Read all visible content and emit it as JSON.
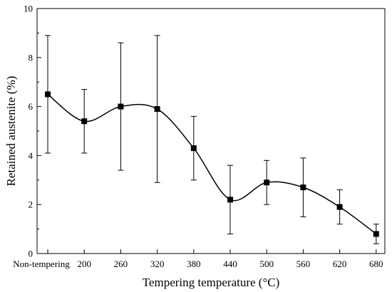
{
  "chart_data": {
    "type": "line",
    "xlabel": "Tempering temperature (°C)",
    "ylabel": "Retained austenite (%)",
    "categories": [
      "Non-tempering",
      "200",
      "260",
      "320",
      "380",
      "440",
      "500",
      "560",
      "620",
      "680"
    ],
    "ylim": [
      0,
      10
    ],
    "yticks": [
      "0",
      "2",
      "4",
      "6",
      "8",
      "10"
    ],
    "series": [
      {
        "values": [
          6.5,
          5.4,
          6.0,
          5.9,
          4.3,
          2.2,
          2.9,
          2.7,
          1.9,
          0.8
        ],
        "error_upper": [
          8.9,
          6.7,
          8.6,
          8.9,
          5.6,
          3.6,
          3.8,
          3.9,
          2.6,
          1.2
        ],
        "error_lower": [
          4.1,
          4.1,
          3.4,
          2.9,
          3.0,
          0.8,
          2.0,
          1.5,
          1.2,
          0.4
        ],
        "marker": "square",
        "color": "#000000"
      }
    ],
    "grid": false,
    "smooth": true
  }
}
